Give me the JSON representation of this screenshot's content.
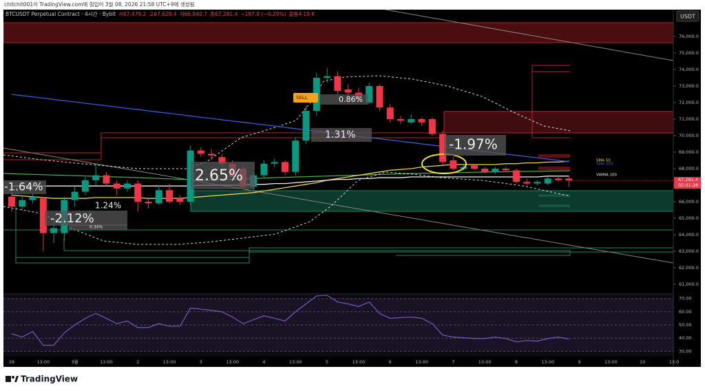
{
  "header": {
    "credit": "chitchit001이 TradingView.com에 힘입어 3월 08, 2026 21:58 UTC+9에 생성됨",
    "currency_button": "USDT"
  },
  "footer": {
    "brand": "TradingView"
  },
  "chart_data": [
    {
      "type": "candlestick",
      "title": "BTCUSDT Perpetual Contract · 4시간 · Bybit",
      "legend": [
        "시67,479.2",
        "고67,629.4",
        "저66,840.7",
        "종67,281.4",
        "−197.8 (−0.29%)",
        "볼륨4.19 K"
      ],
      "up_color": "#089981",
      "down_color": "#f23645",
      "categories": [
        "28",
        null,
        null,
        "13:00",
        null,
        null,
        "3월",
        null,
        null,
        "13:00",
        null,
        null,
        "2",
        null,
        null,
        "13:00",
        null,
        null,
        "3",
        null,
        null,
        "13:00",
        null,
        null,
        "4",
        null,
        null,
        "13:00",
        null,
        null,
        "5",
        null,
        null,
        "13:00",
        null,
        null,
        "6",
        null,
        null,
        "13:00",
        null,
        null,
        "7",
        null,
        null,
        "13:00",
        null,
        null,
        "8",
        null,
        null,
        "13:00",
        null,
        null,
        "9",
        null,
        null,
        "13:00",
        null,
        null,
        "10",
        null,
        null,
        "13:0"
      ],
      "open": [
        66300,
        65700,
        66100,
        66200,
        64100,
        64100,
        66100,
        66600,
        67300,
        67600,
        67100,
        66800,
        67100,
        66000,
        65900,
        66700,
        66200,
        66000,
        69100,
        68900,
        68700,
        68300,
        68000,
        66900,
        67600,
        68300,
        68400,
        67800,
        69700,
        71500,
        73500,
        73600,
        72800,
        72600,
        72000,
        73000,
        71700,
        71000,
        70800,
        71000,
        71000,
        70100,
        68500,
        68000,
        68200,
        68000,
        67800,
        68000,
        67900,
        67200,
        67100,
        67100,
        67400,
        67400,
        null,
        null,
        null,
        null,
        null,
        null,
        null,
        null,
        null,
        null
      ],
      "high": [
        66600,
        66300,
        66500,
        66300,
        64900,
        66300,
        66900,
        67500,
        68300,
        67800,
        67300,
        67300,
        67300,
        66200,
        67000,
        67100,
        66400,
        69400,
        69300,
        69200,
        68900,
        68500,
        68200,
        67800,
        68500,
        68600,
        68500,
        69900,
        71800,
        73800,
        74100,
        73900,
        73100,
        72900,
        73200,
        73100,
        71900,
        71200,
        71300,
        71100,
        71100,
        70300,
        68700,
        68300,
        68300,
        68100,
        68100,
        68100,
        68000,
        67400,
        67300,
        67500,
        67600,
        67600,
        null,
        null,
        null,
        null,
        null,
        null,
        null,
        null,
        null,
        null
      ],
      "low": [
        65400,
        65500,
        65900,
        63000,
        63500,
        63600,
        65700,
        66400,
        67000,
        66900,
        66400,
        66600,
        65400,
        65600,
        65800,
        65900,
        65800,
        65800,
        68700,
        68500,
        68100,
        67300,
        66800,
        66700,
        67400,
        68100,
        67600,
        67600,
        69500,
        71200,
        73200,
        72500,
        71900,
        72000,
        71900,
        71500,
        70800,
        70700,
        70700,
        70600,
        70000,
        68200,
        67900,
        67900,
        67900,
        67700,
        67700,
        67800,
        67100,
        67000,
        67000,
        67000,
        67200,
        66900,
        null,
        null,
        null,
        null,
        null,
        null,
        null,
        null,
        null,
        null
      ],
      "close": [
        65700,
        66100,
        66300,
        64100,
        64400,
        66100,
        66600,
        67300,
        67600,
        67100,
        66800,
        67100,
        66000,
        65900,
        66700,
        66000,
        66000,
        69100,
        68900,
        68800,
        68300,
        67500,
        66900,
        67600,
        68300,
        68400,
        67800,
        69700,
        71500,
        73500,
        73600,
        72700,
        72600,
        72200,
        73000,
        71700,
        71000,
        70900,
        71000,
        70800,
        70100,
        68400,
        68000,
        68100,
        68000,
        67800,
        68000,
        67900,
        67200,
        67100,
        67200,
        67400,
        67300,
        67281.4,
        null,
        null,
        null,
        null,
        null,
        null,
        null,
        null,
        null,
        null
      ],
      "series": [
        {
          "name": "SMA 50",
          "color": "#e8d84a",
          "values": [
            66400,
            66350,
            66300,
            66250,
            66200,
            66200,
            66200,
            66200,
            66250,
            66250,
            66250,
            66250,
            66250,
            66200,
            66200,
            66200,
            66200,
            66250,
            66300,
            66350,
            66400,
            66450,
            66500,
            66550,
            66650,
            66750,
            66850,
            66950,
            67050,
            67150,
            67300,
            67400,
            67500,
            67600,
            67700,
            67800,
            67900,
            67950,
            68000,
            68100,
            68150,
            68200,
            68250,
            68250,
            68250,
            68250,
            68250,
            68300,
            68300,
            68350,
            68350,
            68400,
            68400,
            68450,
            null,
            null,
            null,
            null,
            null,
            null,
            null,
            null,
            null,
            null
          ]
        },
        {
          "name": "SMA 200",
          "color": "#3d5bd9",
          "values": [
            72500,
            72420,
            72350,
            72270,
            72190,
            72110,
            72040,
            71960,
            71880,
            71810,
            71730,
            71650,
            71580,
            71500,
            71420,
            71350,
            71270,
            71190,
            71110,
            71040,
            70960,
            70880,
            70810,
            70730,
            70650,
            70580,
            70500,
            70420,
            70340,
            70270,
            70190,
            70110,
            70040,
            69960,
            69880,
            69810,
            69730,
            69650,
            69580,
            69500,
            69420,
            69350,
            69270,
            69190,
            69110,
            69040,
            68960,
            68880,
            68810,
            68730,
            68650,
            68580,
            68500,
            68420,
            null,
            null,
            null,
            null,
            null,
            null,
            null,
            null,
            null,
            null
          ]
        },
        {
          "name": "VWMA 100",
          "color": "#f0f0f0",
          "values": [
            66950,
            66950,
            66950,
            66950,
            66950,
            66950,
            66950,
            66950,
            66950,
            66950,
            66950,
            66950,
            66950,
            66950,
            66950,
            66950,
            66950,
            66950,
            67000,
            67000,
            67000,
            67000,
            67000,
            67050,
            67050,
            67100,
            67100,
            67150,
            67200,
            67250,
            67300,
            67350,
            67350,
            67400,
            67400,
            67450,
            67450,
            67450,
            67500,
            67500,
            67500,
            67500,
            67500,
            67500,
            67500,
            67500,
            67500,
            67500,
            67500,
            67500,
            67500,
            67550,
            67550,
            67550,
            null,
            null,
            null,
            null,
            null,
            null,
            null,
            null,
            null,
            null
          ]
        }
      ],
      "last_price_label": "67,281.4",
      "countdown": "02:01:28",
      "annotations": [
        "-1.64%",
        "1.24%",
        "-2.12%",
        "0.34%",
        "2.65%",
        "1.31%",
        "0.86%",
        "-1.97%",
        "SELL"
      ],
      "ylim": [
        60500,
        77000
      ],
      "yticks": [
        {
          "value": 76000,
          "label": "76,000.0"
        },
        {
          "value": 75000,
          "label": "75,000.0"
        },
        {
          "value": 74000,
          "label": "74,000.0"
        },
        {
          "value": 73000,
          "label": "73,000.0"
        },
        {
          "value": 72000,
          "label": "72,000.0"
        },
        {
          "value": 71000,
          "label": "71,000.0"
        },
        {
          "value": 70000,
          "label": "70,000.0"
        },
        {
          "value": 69000,
          "label": "69,000.0"
        },
        {
          "value": 68000,
          "label": "68,000.0"
        },
        {
          "value": 67000,
          "label": "67,000.0"
        },
        {
          "value": 66000,
          "label": "66,000.0"
        },
        {
          "value": 65000,
          "label": "65,000.0"
        },
        {
          "value": 64000,
          "label": "64,000.0"
        },
        {
          "value": 63000,
          "label": "63,000.0"
        },
        {
          "value": 62000,
          "label": "62,000.0"
        },
        {
          "value": 61000,
          "label": "61,000.0"
        }
      ]
    },
    {
      "type": "line",
      "color": "#7e57c2",
      "values": [
        43.3,
        40.8,
        45,
        34.6,
        34.6,
        44,
        50,
        55,
        58.7,
        55,
        51,
        53,
        48,
        48,
        51,
        49,
        49,
        62.8,
        62,
        61,
        60,
        56,
        51,
        54,
        57,
        55,
        53,
        60,
        66,
        72,
        72.5,
        67.4,
        66,
        64,
        67.4,
        58.7,
        55,
        55.6,
        56,
        55,
        51,
        42.3,
        40.8,
        40.3,
        39.7,
        39.7,
        40.8,
        39.7,
        37.2,
        38.2,
        37.7,
        39.7,
        40.8,
        39.2,
        null,
        null,
        null,
        null,
        null,
        null,
        null,
        null,
        null,
        null
      ],
      "ylim": [
        26,
        73
      ],
      "yticks": [
        {
          "value": 70,
          "label": "70.00"
        },
        {
          "value": 60,
          "label": "60.00"
        },
        {
          "value": 50,
          "label": "50.00"
        },
        {
          "value": 40,
          "label": "40.00"
        },
        {
          "value": 30,
          "label": "30.00"
        }
      ]
    }
  ]
}
